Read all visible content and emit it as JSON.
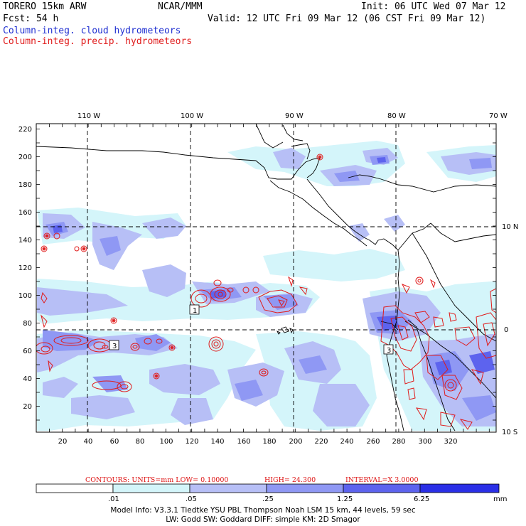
{
  "header": {
    "model": "TORERO  15km ARW",
    "org": "NCAR/MMM",
    "init": "Init: 06 UTC Wed 07 Mar 12",
    "fcst": "Fcst:   54 h",
    "valid": "Valid: 12 UTC Fri 09 Mar 12 (06 CST Fri 09 Mar 12)",
    "field1": "Column-integ. cloud hydrometeors",
    "field2": "Column-integ. precip. hydrometeors"
  },
  "colors": {
    "field1": "#1f2fd1",
    "field2": "#e01b1b",
    "bins": [
      "#ffffff",
      "#d4f5fa",
      "#b7bff6",
      "#8f98f4",
      "#5d63ee",
      "#2a2fe6",
      "#1e1ee6"
    ]
  },
  "map": {
    "lon_labels": [
      "110 W",
      "100 W",
      "90 W",
      "80 W",
      "70 W"
    ],
    "lat_labels": [
      "10 N",
      "0",
      "10 S"
    ],
    "y_ticks": [
      "220",
      "200",
      "180",
      "160",
      "140",
      "120",
      "100",
      "80",
      "60",
      "40",
      "20"
    ],
    "x_ticks": [
      "20",
      "40",
      "60",
      "80",
      "100",
      "120",
      "140",
      "160",
      "180",
      "200",
      "220",
      "240",
      "260",
      "280",
      "300",
      "320"
    ],
    "low_labels": [
      "1",
      "3",
      "3"
    ]
  },
  "contours": {
    "label": "CONTOURS:  UNITS=mm  LOW= 0.10000",
    "high": "HIGH=  24.300",
    "interval": "INTERVAL=X  3.0000"
  },
  "colorbar": {
    "labels": [
      ".01",
      ".05",
      ".25",
      "1.25",
      "6.25"
    ],
    "units": "mm"
  },
  "footer": {
    "line1": "Model Info: V3.3.1   Tiedtke YSU PBL  Thompson   Noah LSM  15 km,   44 levels,   59 sec",
    "line2": "LW: Godd SW: Goddard DIFF: simple KM: 2D Smagor"
  }
}
